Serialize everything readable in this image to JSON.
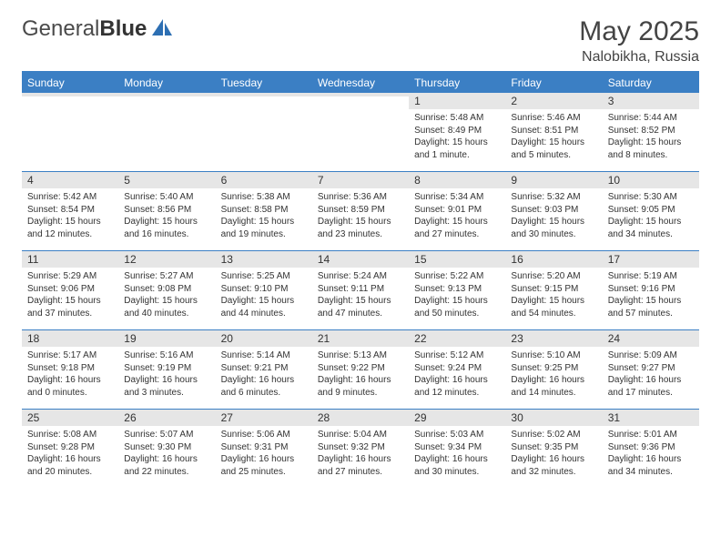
{
  "logo": {
    "text1": "General",
    "text2": "Blue"
  },
  "title": "May 2025",
  "location": "Nalobikha, Russia",
  "weekdays": [
    "Sunday",
    "Monday",
    "Tuesday",
    "Wednesday",
    "Thursday",
    "Friday",
    "Saturday"
  ],
  "colors": {
    "header_bg": "#3b7fc4",
    "header_text": "#ffffff",
    "daynum_bg": "#e6e6e6",
    "border": "#3b7fc4",
    "text": "#333333",
    "logo_icon_fill": "#2d6fb3"
  },
  "weeks": [
    [
      {
        "n": "",
        "sr": "",
        "ss": "",
        "dl": ""
      },
      {
        "n": "",
        "sr": "",
        "ss": "",
        "dl": ""
      },
      {
        "n": "",
        "sr": "",
        "ss": "",
        "dl": ""
      },
      {
        "n": "",
        "sr": "",
        "ss": "",
        "dl": ""
      },
      {
        "n": "1",
        "sr": "Sunrise: 5:48 AM",
        "ss": "Sunset: 8:49 PM",
        "dl": "Daylight: 15 hours and 1 minute."
      },
      {
        "n": "2",
        "sr": "Sunrise: 5:46 AM",
        "ss": "Sunset: 8:51 PM",
        "dl": "Daylight: 15 hours and 5 minutes."
      },
      {
        "n": "3",
        "sr": "Sunrise: 5:44 AM",
        "ss": "Sunset: 8:52 PM",
        "dl": "Daylight: 15 hours and 8 minutes."
      }
    ],
    [
      {
        "n": "4",
        "sr": "Sunrise: 5:42 AM",
        "ss": "Sunset: 8:54 PM",
        "dl": "Daylight: 15 hours and 12 minutes."
      },
      {
        "n": "5",
        "sr": "Sunrise: 5:40 AM",
        "ss": "Sunset: 8:56 PM",
        "dl": "Daylight: 15 hours and 16 minutes."
      },
      {
        "n": "6",
        "sr": "Sunrise: 5:38 AM",
        "ss": "Sunset: 8:58 PM",
        "dl": "Daylight: 15 hours and 19 minutes."
      },
      {
        "n": "7",
        "sr": "Sunrise: 5:36 AM",
        "ss": "Sunset: 8:59 PM",
        "dl": "Daylight: 15 hours and 23 minutes."
      },
      {
        "n": "8",
        "sr": "Sunrise: 5:34 AM",
        "ss": "Sunset: 9:01 PM",
        "dl": "Daylight: 15 hours and 27 minutes."
      },
      {
        "n": "9",
        "sr": "Sunrise: 5:32 AM",
        "ss": "Sunset: 9:03 PM",
        "dl": "Daylight: 15 hours and 30 minutes."
      },
      {
        "n": "10",
        "sr": "Sunrise: 5:30 AM",
        "ss": "Sunset: 9:05 PM",
        "dl": "Daylight: 15 hours and 34 minutes."
      }
    ],
    [
      {
        "n": "11",
        "sr": "Sunrise: 5:29 AM",
        "ss": "Sunset: 9:06 PM",
        "dl": "Daylight: 15 hours and 37 minutes."
      },
      {
        "n": "12",
        "sr": "Sunrise: 5:27 AM",
        "ss": "Sunset: 9:08 PM",
        "dl": "Daylight: 15 hours and 40 minutes."
      },
      {
        "n": "13",
        "sr": "Sunrise: 5:25 AM",
        "ss": "Sunset: 9:10 PM",
        "dl": "Daylight: 15 hours and 44 minutes."
      },
      {
        "n": "14",
        "sr": "Sunrise: 5:24 AM",
        "ss": "Sunset: 9:11 PM",
        "dl": "Daylight: 15 hours and 47 minutes."
      },
      {
        "n": "15",
        "sr": "Sunrise: 5:22 AM",
        "ss": "Sunset: 9:13 PM",
        "dl": "Daylight: 15 hours and 50 minutes."
      },
      {
        "n": "16",
        "sr": "Sunrise: 5:20 AM",
        "ss": "Sunset: 9:15 PM",
        "dl": "Daylight: 15 hours and 54 minutes."
      },
      {
        "n": "17",
        "sr": "Sunrise: 5:19 AM",
        "ss": "Sunset: 9:16 PM",
        "dl": "Daylight: 15 hours and 57 minutes."
      }
    ],
    [
      {
        "n": "18",
        "sr": "Sunrise: 5:17 AM",
        "ss": "Sunset: 9:18 PM",
        "dl": "Daylight: 16 hours and 0 minutes."
      },
      {
        "n": "19",
        "sr": "Sunrise: 5:16 AM",
        "ss": "Sunset: 9:19 PM",
        "dl": "Daylight: 16 hours and 3 minutes."
      },
      {
        "n": "20",
        "sr": "Sunrise: 5:14 AM",
        "ss": "Sunset: 9:21 PM",
        "dl": "Daylight: 16 hours and 6 minutes."
      },
      {
        "n": "21",
        "sr": "Sunrise: 5:13 AM",
        "ss": "Sunset: 9:22 PM",
        "dl": "Daylight: 16 hours and 9 minutes."
      },
      {
        "n": "22",
        "sr": "Sunrise: 5:12 AM",
        "ss": "Sunset: 9:24 PM",
        "dl": "Daylight: 16 hours and 12 minutes."
      },
      {
        "n": "23",
        "sr": "Sunrise: 5:10 AM",
        "ss": "Sunset: 9:25 PM",
        "dl": "Daylight: 16 hours and 14 minutes."
      },
      {
        "n": "24",
        "sr": "Sunrise: 5:09 AM",
        "ss": "Sunset: 9:27 PM",
        "dl": "Daylight: 16 hours and 17 minutes."
      }
    ],
    [
      {
        "n": "25",
        "sr": "Sunrise: 5:08 AM",
        "ss": "Sunset: 9:28 PM",
        "dl": "Daylight: 16 hours and 20 minutes."
      },
      {
        "n": "26",
        "sr": "Sunrise: 5:07 AM",
        "ss": "Sunset: 9:30 PM",
        "dl": "Daylight: 16 hours and 22 minutes."
      },
      {
        "n": "27",
        "sr": "Sunrise: 5:06 AM",
        "ss": "Sunset: 9:31 PM",
        "dl": "Daylight: 16 hours and 25 minutes."
      },
      {
        "n": "28",
        "sr": "Sunrise: 5:04 AM",
        "ss": "Sunset: 9:32 PM",
        "dl": "Daylight: 16 hours and 27 minutes."
      },
      {
        "n": "29",
        "sr": "Sunrise: 5:03 AM",
        "ss": "Sunset: 9:34 PM",
        "dl": "Daylight: 16 hours and 30 minutes."
      },
      {
        "n": "30",
        "sr": "Sunrise: 5:02 AM",
        "ss": "Sunset: 9:35 PM",
        "dl": "Daylight: 16 hours and 32 minutes."
      },
      {
        "n": "31",
        "sr": "Sunrise: 5:01 AM",
        "ss": "Sunset: 9:36 PM",
        "dl": "Daylight: 16 hours and 34 minutes."
      }
    ]
  ]
}
